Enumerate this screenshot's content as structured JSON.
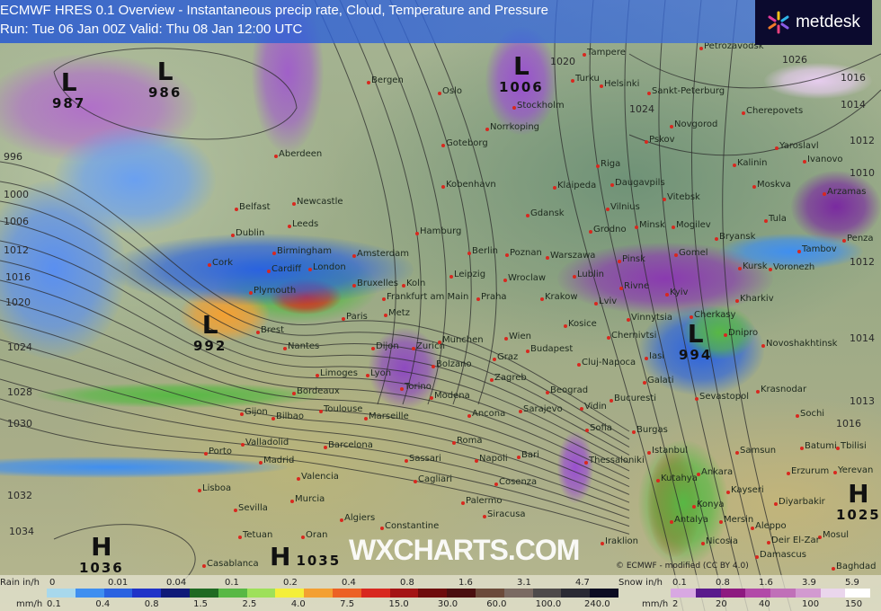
{
  "header": {
    "title": "ECMWF HRES 0.1 Overview - Instantaneous precip rate, Cloud, Temperature and Pressure",
    "run_valid": "Run: Tue 06 Jan 00Z Valid: Thu 08 Jan 12:00 UTC"
  },
  "logo": {
    "text": "metdesk",
    "icon": "metdesk-burst-icon"
  },
  "watermark": "WXCHARTS.COM",
  "credit": "© ECMWF - modified (CC BY 4.0)",
  "pressure_centers": [
    {
      "type": "L",
      "value": "987"
    },
    {
      "type": "L",
      "value": "986"
    },
    {
      "type": "L",
      "value": "1006"
    },
    {
      "type": "L",
      "value": "992"
    },
    {
      "type": "L",
      "value": "994"
    },
    {
      "type": "H",
      "value": "1036"
    },
    {
      "type": "H",
      "value": "1035"
    },
    {
      "type": "H",
      "value": "1025"
    }
  ],
  "isobar_labels": [
    "996",
    "1000",
    "1006",
    "1012",
    "1016",
    "1020",
    "1024",
    "1028",
    "1030",
    "1032",
    "1034",
    "1026",
    "1020",
    "1024",
    "1016",
    "1014",
    "1012",
    "1010",
    "1012",
    "1014",
    "1016",
    "1013"
  ],
  "cities": [
    "Aberdeen",
    "Newcastle",
    "Belfast",
    "Leeds",
    "Dublin",
    "Birmingham",
    "Cork",
    "Cardiff",
    "London",
    "Plymouth",
    "Amsterdam",
    "Bruxelles",
    "Koln",
    "Frankfurt am Main",
    "Brest",
    "Nantes",
    "Paris",
    "Metz",
    "Dijon",
    "Zurich",
    "Limoges",
    "Lyon",
    "Torino",
    "Bordeaux",
    "Toulouse",
    "Marseille",
    "Gijon",
    "Bilbao",
    "Valladolid",
    "Porto",
    "Madrid",
    "Barcelona",
    "Valencia",
    "Lisboa",
    "Murcia",
    "Sevilla",
    "Algiers",
    "Constantine",
    "Tetuan",
    "Oran",
    "Casablanca",
    "Bergen",
    "Oslo",
    "Stockholm",
    "Norrkoping",
    "Goteborg",
    "Kobenhavn",
    "Hamburg",
    "Berlin",
    "Poznan",
    "Leipzig",
    "Wroclaw",
    "Praha",
    "Tampere",
    "Turku",
    "Helsinki",
    "Sankt-Peterburg",
    "Petrozavodsk",
    "Cherepovets",
    "Novgorod",
    "Pskov",
    "Yaroslavl",
    "Ivanovo",
    "Riga",
    "Kalinin",
    "Daugavpils",
    "Klaipeda",
    "Moskva",
    "Vitebsk",
    "Vilnius",
    "Gdansk",
    "Arzamas",
    "Minsk",
    "Mogilev",
    "Grodno",
    "Tula",
    "Bryansk",
    "Penza",
    "Warszawa",
    "Pinsk",
    "Gomel",
    "Tambov",
    "Kursk",
    "Voronezh",
    "Lublin",
    "Rivne",
    "Kyiv",
    "Krakow",
    "Kharkiv",
    "Lviv",
    "Cherkasy",
    "Vinnytsia",
    "Dnipro",
    "Kosice",
    "Chernivtsi",
    "Munchen",
    "Wien",
    "Novoshakhtinsk",
    "Budapest",
    "Graz",
    "Iasi",
    "Cluj-Napoca",
    "Bolzano",
    "Galati",
    "Zagreb",
    "Krasnodar",
    "Beograd",
    "Bucuresti",
    "Modena",
    "Sevastopol",
    "Ancona",
    "Sarajevo",
    "Vidin",
    "Sochi",
    "Sofia",
    "Burgas",
    "Roma",
    "Batumi",
    "Tbilisi",
    "Istanbul",
    "Samsun",
    "Napoli",
    "Bari",
    "Thessaloniki",
    "Erzurum",
    "Yerevan",
    "Ankara",
    "Kutahya",
    "Cosenza",
    "Sassari",
    "Cagliari",
    "Kayseri",
    "Palermo",
    "Diyarbakir",
    "Konya",
    "Siracusa",
    "Antalya",
    "Mersin",
    "Aleppo",
    "Mosul",
    "Nicosia",
    "Deir El-Zar",
    "Iraklion",
    "Damascus",
    "Baghdad"
  ],
  "legend": {
    "rain": {
      "label_in": "Rain in/h",
      "label_mm": "mm/h",
      "in_ticks": [
        "0",
        "0.01",
        "0.04",
        "0.1",
        "0.2",
        "0.4",
        "0.8",
        "1.6",
        "3.1",
        "4.7"
      ],
      "mm_ticks": [
        "0.1",
        "0.4",
        "0.8",
        "1.5",
        "2.5",
        "4.0",
        "7.5",
        "15.0",
        "30.0",
        "60.0",
        "100.0",
        "240.0"
      ],
      "colors": [
        "#a8d8ec",
        "#3f8ff0",
        "#2a62e0",
        "#1f33c8",
        "#101a78",
        "#1f6a22",
        "#58b845",
        "#9ee05a",
        "#f4ef3a",
        "#f3a032",
        "#ec6124",
        "#d8281f",
        "#a41414",
        "#6e0c0c",
        "#4a0f0f",
        "#6b4a3a",
        "#7a6a62",
        "#4e4a4a",
        "#2a2a33",
        "#0c0c22"
      ]
    },
    "snow": {
      "label_in": "Snow in/h",
      "label_mm": "mm/h",
      "in_ticks": [
        "0.1",
        "0.8",
        "1.6",
        "3.9",
        "5.9"
      ],
      "mm_ticks": [
        "2",
        "20",
        "40",
        "100",
        "150"
      ],
      "colors": [
        "#d8a8e2",
        "#5a1a8c",
        "#8e1a80",
        "#b24aa8",
        "#c070b8",
        "#d29ad0",
        "#ead6ec",
        "#ffffff"
      ]
    }
  }
}
